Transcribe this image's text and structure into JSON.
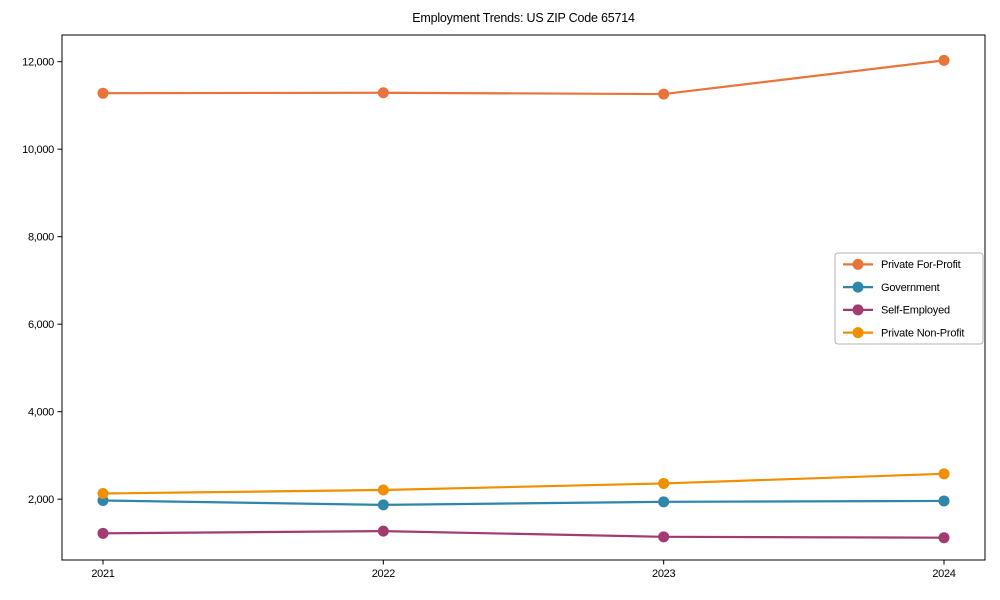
{
  "chart_data": {
    "type": "line",
    "title": "Employment Trends: US ZIP Code 65714",
    "xlabel": "",
    "ylabel": "",
    "categories": [
      "2021",
      "2022",
      "2023",
      "2024"
    ],
    "series": [
      {
        "name": "Private For-Profit",
        "color": "#E8743B",
        "values": [
          11280,
          11290,
          11260,
          12030
        ]
      },
      {
        "name": "Government",
        "color": "#2E86AB",
        "values": [
          1970,
          1870,
          1940,
          1960
        ]
      },
      {
        "name": "Self-Employed",
        "color": "#A23B72",
        "values": [
          1220,
          1270,
          1140,
          1120
        ]
      },
      {
        "name": "Private Non-Profit",
        "color": "#F18F01",
        "values": [
          2130,
          2210,
          2360,
          2580
        ]
      }
    ],
    "ylim": [
      610,
      12610
    ],
    "yticks": [
      2000,
      4000,
      6000,
      8000,
      10000,
      12000
    ],
    "ytick_labels": [
      "2,000",
      "4,000",
      "6,000",
      "8,000",
      "10,000",
      "12,000"
    ],
    "grid": false,
    "legend_position": "right-center",
    "marker": "circle",
    "frame_color": "#000000",
    "legend_border_color": "#b3b3b3"
  }
}
